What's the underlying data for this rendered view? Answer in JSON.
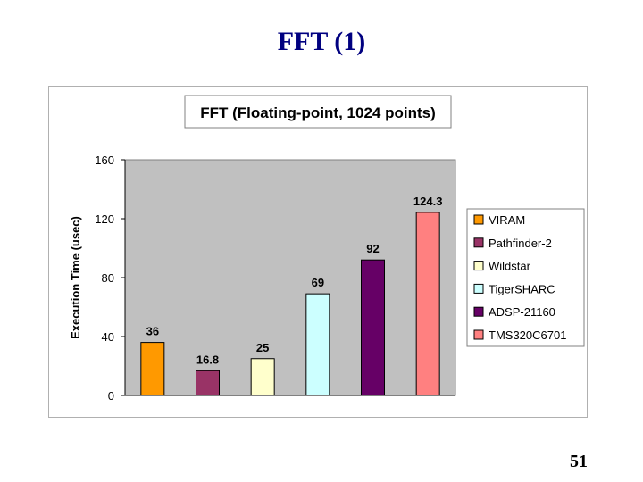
{
  "slide": {
    "title": "FFT (1)",
    "page_number": "51"
  },
  "chart_data": {
    "type": "bar",
    "title": "FFT (Floating-point, 1024 points)",
    "xlabel": "",
    "ylabel": "Execution Time (usec)",
    "ylim": [
      0,
      160
    ],
    "yticks": [
      0,
      40,
      80,
      120,
      160
    ],
    "grid": false,
    "plot_background": "#c0c0c0",
    "legend_position": "right",
    "categories": [
      "VIRAM",
      "Pathfinder-2",
      "Wildstar",
      "TigerSHARC",
      "ADSP-21160",
      "TMS320C6701"
    ],
    "values": [
      36,
      16.8,
      25,
      69,
      92,
      124.3
    ],
    "value_labels": [
      "36",
      "16.8",
      "25",
      "69",
      "92",
      "124.3"
    ],
    "colors": [
      "#ff9900",
      "#993366",
      "#ffffcc",
      "#ccffff",
      "#660066",
      "#ff8080"
    ]
  }
}
